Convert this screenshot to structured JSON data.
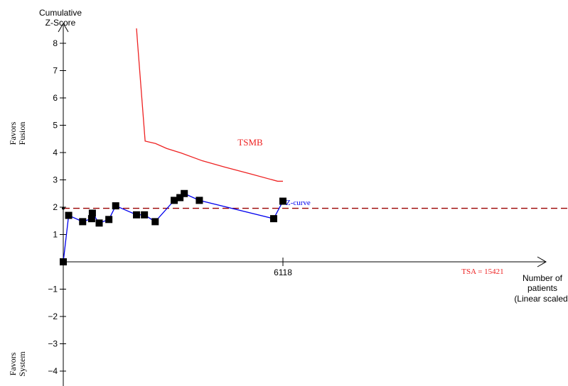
{
  "chart_data": {
    "type": "line",
    "y_axis_title": [
      "Cumulative",
      "Z-Score"
    ],
    "x_axis_title": [
      "Number of",
      "patients",
      "(Linear scaled)"
    ],
    "side_labels": {
      "top": [
        "Favors",
        "Fusion"
      ],
      "bottom": [
        "Favors",
        "System"
      ]
    },
    "ylim": [
      -4.5,
      8.5
    ],
    "y_ticks": [
      8,
      7,
      6,
      5,
      4,
      3,
      2,
      1,
      -1,
      -2,
      -3,
      -4
    ],
    "y_tick_labels": [
      "8",
      "7",
      "6",
      "5",
      "4",
      "3",
      "2",
      "1",
      "−1",
      "−2",
      "−3",
      "−4"
    ],
    "xlim": [
      0,
      17400
    ],
    "x_ticks": [
      6118
    ],
    "x_tick_labels": [
      "6118"
    ],
    "tsa_line": {
      "x": 15421,
      "label": "TSA = 15421"
    },
    "conventional_boundary": {
      "y": 1.96
    },
    "series": [
      {
        "name": "Z-curve",
        "color": "#0000ee",
        "points": [
          [
            0,
            0
          ],
          [
            150,
            1.7
          ],
          [
            540,
            1.47
          ],
          [
            790,
            1.58
          ],
          [
            810,
            1.78
          ],
          [
            1000,
            1.42
          ],
          [
            1270,
            1.55
          ],
          [
            1460,
            2.05
          ],
          [
            2040,
            1.72
          ],
          [
            2260,
            1.72
          ],
          [
            2560,
            1.47
          ],
          [
            3090,
            2.25
          ],
          [
            3250,
            2.35
          ],
          [
            3370,
            2.5
          ],
          [
            3790,
            2.25
          ],
          [
            5860,
            1.58
          ],
          [
            6118,
            2.22
          ]
        ]
      },
      {
        "name": "TSMB",
        "color": "#ee2222",
        "points": [
          [
            2040,
            8.85
          ],
          [
            2070,
            8.0
          ],
          [
            2280,
            4.42
          ],
          [
            2570,
            4.33
          ],
          [
            2880,
            4.15
          ],
          [
            3290,
            3.98
          ],
          [
            3870,
            3.7
          ],
          [
            4490,
            3.47
          ],
          [
            5210,
            3.22
          ],
          [
            5970,
            2.95
          ],
          [
            6118,
            2.95
          ]
        ]
      }
    ],
    "colors": {
      "axis": "#000000",
      "z_curve": "#0000ee",
      "marker": "#000000",
      "tsmb": "#ee2222",
      "boundary": "#990000",
      "tsa": "#ee2222"
    }
  }
}
